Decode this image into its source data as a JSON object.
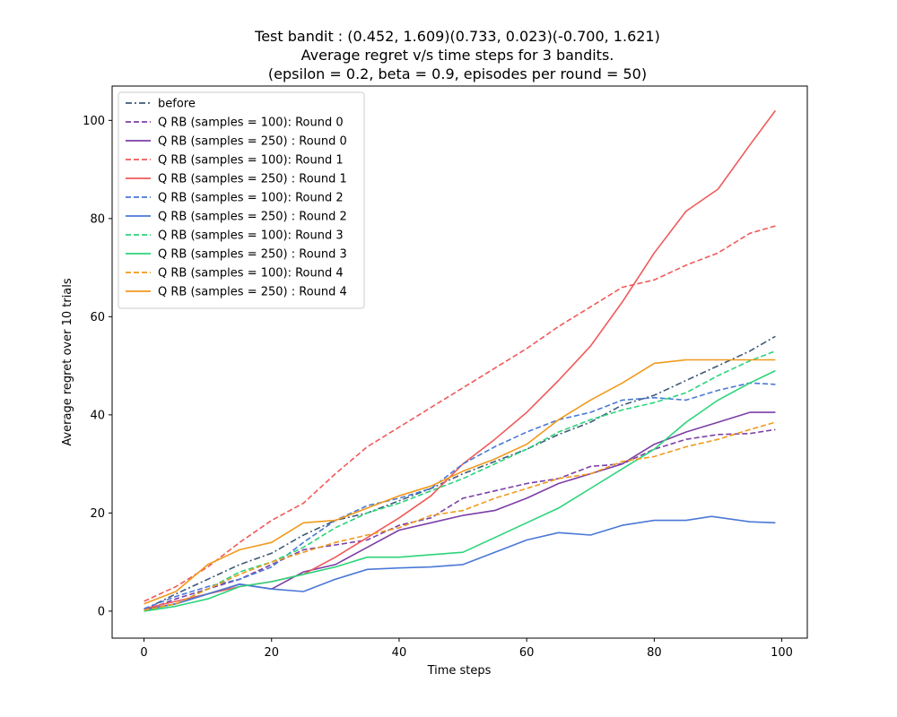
{
  "chart_data": {
    "type": "line",
    "title": [
      "Test bandit : (0.452, 1.609)(0.733, 0.023)(-0.700, 1.621)",
      "Average regret v/s time steps for 3 bandits.",
      "(epsilon = 0.2, beta = 0.9, episodes per round = 50)"
    ],
    "xlabel": "Time steps",
    "ylabel": "Average regret over 10 trials",
    "xlim": [
      -5,
      104
    ],
    "ylim": [
      -5.5,
      107
    ],
    "xticks": [
      0,
      20,
      40,
      60,
      80,
      100
    ],
    "yticks": [
      0,
      20,
      40,
      60,
      80,
      100
    ],
    "grid": false,
    "legend_position": "top-left",
    "series": [
      {
        "name": "before",
        "color": "#3f5a7a",
        "dash": "dashdot",
        "points": [
          [
            0,
            0.3
          ],
          [
            5,
            3.5
          ],
          [
            10,
            6.5
          ],
          [
            15,
            9.5
          ],
          [
            20,
            11.8
          ],
          [
            25,
            15.5
          ],
          [
            30,
            18.5
          ],
          [
            35,
            20
          ],
          [
            40,
            22.5
          ],
          [
            45,
            25
          ],
          [
            50,
            28
          ],
          [
            55,
            30.5
          ],
          [
            60,
            33
          ],
          [
            65,
            36
          ],
          [
            70,
            38.5
          ],
          [
            75,
            42
          ],
          [
            80,
            44
          ],
          [
            85,
            47
          ],
          [
            90,
            50
          ],
          [
            95,
            53
          ],
          [
            99,
            56
          ]
        ]
      },
      {
        "name": "Q RB (samples = 100): Round 0",
        "color": "#7b3fa6",
        "dash": "dashed",
        "points": [
          [
            0,
            0
          ],
          [
            5,
            2.5
          ],
          [
            10,
            4.5
          ],
          [
            15,
            6.5
          ],
          [
            20,
            9.5
          ],
          [
            25,
            12.5
          ],
          [
            30,
            13.5
          ],
          [
            35,
            14.5
          ],
          [
            40,
            17.5
          ],
          [
            45,
            19
          ],
          [
            50,
            23
          ],
          [
            55,
            24.5
          ],
          [
            60,
            26
          ],
          [
            65,
            27
          ],
          [
            70,
            29.5
          ],
          [
            75,
            30
          ],
          [
            80,
            33
          ],
          [
            85,
            35
          ],
          [
            90,
            36
          ],
          [
            95,
            36.2
          ],
          [
            99,
            37
          ]
        ]
      },
      {
        "name": "Q RB (samples = 250) : Round 0",
        "color": "#7b3fa6",
        "dash": "solid",
        "points": [
          [
            0,
            0.3
          ],
          [
            5,
            1.5
          ],
          [
            10,
            3.5
          ],
          [
            15,
            5.5
          ],
          [
            20,
            4.5
          ],
          [
            25,
            8
          ],
          [
            30,
            9.5
          ],
          [
            35,
            13
          ],
          [
            40,
            16.5
          ],
          [
            45,
            18
          ],
          [
            50,
            19.5
          ],
          [
            55,
            20.5
          ],
          [
            60,
            23
          ],
          [
            65,
            26
          ],
          [
            70,
            28
          ],
          [
            75,
            30
          ],
          [
            80,
            34
          ],
          [
            85,
            36.5
          ],
          [
            90,
            38.5
          ],
          [
            95,
            40.5
          ],
          [
            99,
            40.5
          ]
        ]
      },
      {
        "name": "Q RB (samples = 100): Round 1",
        "color": "#ef5a5a",
        "dash": "dashed",
        "points": [
          [
            0,
            2
          ],
          [
            5,
            5
          ],
          [
            10,
            9
          ],
          [
            15,
            14
          ],
          [
            20,
            18.5
          ],
          [
            25,
            22
          ],
          [
            30,
            28
          ],
          [
            35,
            33.5
          ],
          [
            40,
            37.5
          ],
          [
            45,
            41.5
          ],
          [
            50,
            45.5
          ],
          [
            55,
            49.5
          ],
          [
            60,
            53.5
          ],
          [
            65,
            58
          ],
          [
            70,
            62
          ],
          [
            75,
            66
          ],
          [
            80,
            67.5
          ],
          [
            85,
            70.5
          ],
          [
            90,
            73
          ],
          [
            95,
            77
          ],
          [
            99,
            78.5
          ]
        ]
      },
      {
        "name": "Q RB (samples = 250) : Round 1",
        "color": "#ef5a5a",
        "dash": "solid",
        "points": [
          [
            0,
            0.5
          ],
          [
            5,
            2
          ],
          [
            10,
            3.5
          ],
          [
            15,
            5
          ],
          [
            20,
            6
          ],
          [
            25,
            7.5
          ],
          [
            30,
            11
          ],
          [
            35,
            15
          ],
          [
            40,
            19
          ],
          [
            45,
            23.5
          ],
          [
            50,
            30
          ],
          [
            55,
            35
          ],
          [
            60,
            40.5
          ],
          [
            65,
            47
          ],
          [
            70,
            54
          ],
          [
            75,
            63
          ],
          [
            80,
            73
          ],
          [
            85,
            81.5
          ],
          [
            90,
            86
          ],
          [
            95,
            95
          ],
          [
            99,
            102
          ]
        ]
      },
      {
        "name": "Q RB (samples = 100): Round 2",
        "color": "#4a78d6",
        "dash": "dashed",
        "points": [
          [
            0,
            0.5
          ],
          [
            5,
            3
          ],
          [
            10,
            5
          ],
          [
            15,
            6.5
          ],
          [
            20,
            9
          ],
          [
            25,
            14
          ],
          [
            30,
            18.5
          ],
          [
            35,
            21.5
          ],
          [
            40,
            23
          ],
          [
            45,
            25
          ],
          [
            50,
            30
          ],
          [
            55,
            33.5
          ],
          [
            60,
            36.5
          ],
          [
            65,
            39
          ],
          [
            70,
            40.5
          ],
          [
            75,
            43
          ],
          [
            80,
            43.5
          ],
          [
            85,
            43
          ],
          [
            90,
            45
          ],
          [
            95,
            46.5
          ],
          [
            99,
            46.2
          ]
        ]
      },
      {
        "name": "Q RB (samples = 250) : Round 2",
        "color": "#4a78d6",
        "dash": "solid",
        "points": [
          [
            0,
            0.2
          ],
          [
            5,
            1.5
          ],
          [
            10,
            3.5
          ],
          [
            15,
            5.5
          ],
          [
            20,
            4.5
          ],
          [
            25,
            4
          ],
          [
            30,
            6.5
          ],
          [
            35,
            8.5
          ],
          [
            40,
            8.8
          ],
          [
            45,
            9
          ],
          [
            50,
            9.5
          ],
          [
            55,
            12
          ],
          [
            60,
            14.5
          ],
          [
            65,
            16
          ],
          [
            70,
            15.5
          ],
          [
            75,
            17.5
          ],
          [
            80,
            18.5
          ],
          [
            85,
            18.5
          ],
          [
            89,
            19.3
          ],
          [
            95,
            18.2
          ],
          [
            99,
            18
          ]
        ]
      },
      {
        "name": "Q RB (samples = 100): Round 3",
        "color": "#2bd47a",
        "dash": "dashed",
        "points": [
          [
            0,
            0.1
          ],
          [
            5,
            1.5
          ],
          [
            10,
            4.5
          ],
          [
            15,
            8
          ],
          [
            20,
            10
          ],
          [
            25,
            13
          ],
          [
            30,
            17
          ],
          [
            35,
            20
          ],
          [
            40,
            22
          ],
          [
            45,
            24.5
          ],
          [
            50,
            27
          ],
          [
            55,
            30
          ],
          [
            60,
            33
          ],
          [
            65,
            36.5
          ],
          [
            70,
            39
          ],
          [
            75,
            41
          ],
          [
            80,
            42.5
          ],
          [
            85,
            44.5
          ],
          [
            90,
            48
          ],
          [
            95,
            51
          ],
          [
            99,
            53
          ]
        ]
      },
      {
        "name": "Q RB (samples = 250) : Round 3",
        "color": "#2bd47a",
        "dash": "solid",
        "points": [
          [
            0,
            0
          ],
          [
            5,
            1
          ],
          [
            10,
            2.5
          ],
          [
            15,
            5
          ],
          [
            20,
            6
          ],
          [
            25,
            7.5
          ],
          [
            30,
            9
          ],
          [
            35,
            11
          ],
          [
            40,
            11
          ],
          [
            45,
            11.5
          ],
          [
            50,
            12
          ],
          [
            55,
            15
          ],
          [
            60,
            18
          ],
          [
            65,
            21
          ],
          [
            70,
            25
          ],
          [
            75,
            29
          ],
          [
            80,
            33
          ],
          [
            85,
            38.5
          ],
          [
            90,
            43
          ],
          [
            95,
            46.5
          ],
          [
            99,
            49
          ]
        ]
      },
      {
        "name": "Q RB (samples = 100): Round 4",
        "color": "#f09a1c",
        "dash": "dashed",
        "points": [
          [
            0,
            0.2
          ],
          [
            5,
            1.5
          ],
          [
            10,
            4.5
          ],
          [
            15,
            7.5
          ],
          [
            20,
            10
          ],
          [
            25,
            12
          ],
          [
            30,
            14
          ],
          [
            35,
            15.5
          ],
          [
            40,
            17
          ],
          [
            45,
            19.5
          ],
          [
            50,
            20.5
          ],
          [
            55,
            23
          ],
          [
            60,
            25
          ],
          [
            65,
            27
          ],
          [
            70,
            28
          ],
          [
            75,
            30.5
          ],
          [
            80,
            31.5
          ],
          [
            85,
            33.5
          ],
          [
            90,
            35
          ],
          [
            95,
            37
          ],
          [
            99,
            38.5
          ]
        ]
      },
      {
        "name": "Q RB (samples = 250) : Round 4",
        "color": "#f09a1c",
        "dash": "solid",
        "points": [
          [
            0,
            1.5
          ],
          [
            5,
            4
          ],
          [
            10,
            9.5
          ],
          [
            15,
            12.5
          ],
          [
            20,
            14
          ],
          [
            25,
            18
          ],
          [
            30,
            18.5
          ],
          [
            35,
            21
          ],
          [
            40,
            23.5
          ],
          [
            45,
            25.5
          ],
          [
            50,
            28.5
          ],
          [
            55,
            31
          ],
          [
            60,
            34
          ],
          [
            65,
            39
          ],
          [
            70,
            43
          ],
          [
            75,
            46.5
          ],
          [
            80,
            50.5
          ],
          [
            85,
            51.2
          ],
          [
            90,
            51.2
          ],
          [
            95,
            51.2
          ],
          [
            99,
            51.2
          ]
        ]
      }
    ]
  }
}
